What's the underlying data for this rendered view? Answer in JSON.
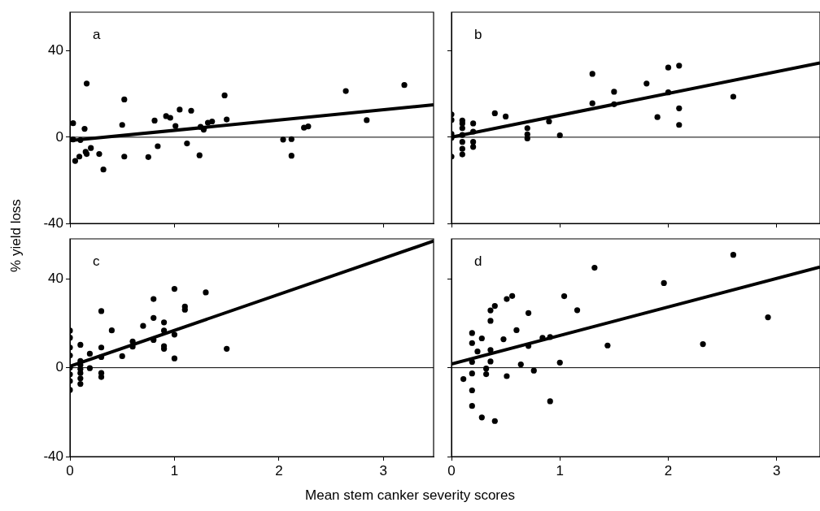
{
  "chart_data": [
    {
      "type": "scatter",
      "title": "a",
      "ylabel": "% yield loss",
      "xlim": [
        0,
        3.48
      ],
      "xticks": [
        0,
        1,
        2,
        3
      ],
      "ylim": [
        -40,
        58
      ],
      "yticks": [
        -40,
        0,
        40
      ],
      "tick_labels": "y",
      "grid": false,
      "ref_lines": [
        {
          "axis": "y",
          "value": 0,
          "color": "#000000"
        }
      ],
      "series": [
        {
          "type": "scatter",
          "marker": "circle",
          "color": "#000000",
          "x": [
            0.03,
            0.03,
            0.05,
            0.16,
            0.14,
            0.1,
            0.09,
            0.15,
            0.16,
            0.2,
            0.28,
            0.32,
            0.5,
            0.52,
            0.52,
            0.75,
            0.81,
            0.84,
            0.92,
            0.96,
            1.01,
            1.05,
            1.12,
            1.16,
            1.24,
            1.25,
            1.28,
            1.32,
            1.36,
            1.48,
            1.5,
            2.04,
            2.12,
            2.12,
            2.24,
            2.28,
            2.64,
            2.84,
            3.2
          ],
          "values": [
            6.5,
            -1,
            -11,
            24.9,
            3.9,
            -1.3,
            -9,
            -6.8,
            -7.8,
            -5,
            -7.8,
            -15,
            5.7,
            17.5,
            -9,
            -9.2,
            7.7,
            -4.2,
            9.8,
            9,
            5.2,
            12.8,
            -2.9,
            12.3,
            -8.4,
            4.8,
            3.5,
            6.7,
            7.3,
            19.4,
            8.2,
            -1.1,
            -0.9,
            -8.6,
            4.4,
            5,
            21.4,
            7.9,
            24.2
          ]
        },
        {
          "type": "line",
          "color": "#000000",
          "x": [
            0,
            3.48
          ],
          "values": [
            -1.6,
            15
          ]
        }
      ]
    },
    {
      "type": "scatter",
      "title": "b",
      "xlim": [
        0,
        3.4
      ],
      "xticks": [
        0,
        1,
        2,
        3
      ],
      "ylim": [
        -40,
        58
      ],
      "yticks": [
        -40,
        0,
        40
      ],
      "tick_labels": false,
      "grid": false,
      "ref_lines": [
        {
          "axis": "y",
          "value": 0,
          "color": "#000000"
        }
      ],
      "series": [
        {
          "type": "scatter",
          "marker": "circle",
          "color": "#000000",
          "x": [
            0,
            0,
            0,
            0,
            0,
            0.1,
            0.1,
            0.1,
            0.1,
            0.1,
            0.1,
            0.1,
            0.2,
            0.2,
            0.2,
            0.2,
            0.4,
            0.5,
            0.7,
            0.7,
            0.7,
            0.9,
            1,
            1.3,
            1.3,
            1.5,
            1.5,
            1.8,
            1.9,
            2,
            2,
            2.1,
            2.1,
            2.1,
            2.6
          ],
          "values": [
            10.6,
            8,
            1.5,
            -0.3,
            -9,
            7.7,
            6.4,
            4.2,
            1,
            -2.2,
            -5.4,
            -8,
            6.4,
            2.6,
            -2.2,
            -4.5,
            11.1,
            9.6,
            4.2,
            1.3,
            -0.6,
            7.3,
            0.9,
            29.4,
            15.7,
            21.1,
            15.3,
            24.9,
            9.3,
            32.3,
            20.8,
            33.2,
            13.4,
            5.7,
            18.8
          ]
        },
        {
          "type": "line",
          "color": "#000000",
          "x": [
            0,
            3.4
          ],
          "values": [
            0,
            34.5
          ]
        }
      ]
    },
    {
      "type": "scatter",
      "title": "c",
      "xlabel": "Mean stem canker severity scores",
      "xlim": [
        0,
        3.48
      ],
      "xticks": [
        0,
        1,
        2,
        3
      ],
      "ylim": [
        -40,
        58
      ],
      "yticks": [
        -40,
        0,
        40
      ],
      "grid": false,
      "ref_lines": [
        {
          "axis": "y",
          "value": 0,
          "color": "#000000"
        }
      ],
      "series": [
        {
          "type": "scatter",
          "marker": "circle",
          "color": "#000000",
          "x": [
            0,
            0,
            0,
            0,
            0,
            0,
            0,
            0,
            0.1,
            0.1,
            0.1,
            0.1,
            0.1,
            0.1,
            0.1,
            0.19,
            0.19,
            0.3,
            0.3,
            0.3,
            0.3,
            0.3,
            0.4,
            0.5,
            0.6,
            0.6,
            0.7,
            0.8,
            0.8,
            0.8,
            0.9,
            0.9,
            0.9,
            0.9,
            1,
            1,
            1,
            1.1,
            1.1,
            1.3,
            1.5
          ],
          "values": [
            16.7,
            13.5,
            9.1,
            5.5,
            0,
            -3,
            -6,
            -10,
            10.3,
            3,
            1.2,
            -0.6,
            -2.4,
            -4.8,
            -7.3,
            6.3,
            -0.2,
            25.5,
            9.1,
            4.8,
            -2.4,
            -4.2,
            16.8,
            5.2,
            11.8,
            9.5,
            18.8,
            30.9,
            22.4,
            12.5,
            20.4,
            16.7,
            9.7,
            8.5,
            35.5,
            14.9,
            4.2,
            27.5,
            26.1,
            33.9,
            8.5
          ]
        },
        {
          "type": "line",
          "color": "#000000",
          "x": [
            0,
            3.48
          ],
          "values": [
            0.6,
            57
          ]
        }
      ]
    },
    {
      "type": "scatter",
      "title": "d",
      "xlim": [
        0,
        3.4
      ],
      "xticks": [
        0,
        1,
        2,
        3
      ],
      "ylim": [
        -40,
        58
      ],
      "yticks": [
        -40,
        0,
        40
      ],
      "tick_labels": "x",
      "grid": false,
      "ref_lines": [
        {
          "axis": "y",
          "value": 0,
          "color": "#000000"
        }
      ],
      "series": [
        {
          "type": "scatter",
          "marker": "circle",
          "color": "#000000",
          "x": [
            0.11,
            0.19,
            0.19,
            0.19,
            0.19,
            0.19,
            0.19,
            0.24,
            0.28,
            0.28,
            0.32,
            0.32,
            0.36,
            0.36,
            0.36,
            0.36,
            0.4,
            0.4,
            0.48,
            0.51,
            0.51,
            0.56,
            0.6,
            0.64,
            0.71,
            0.71,
            0.76,
            0.84,
            0.91,
            0.91,
            1,
            1.04,
            1.16,
            1.32,
            1.44,
            1.96,
            2.32,
            2.6,
            2.92
          ],
          "values": [
            -5.1,
            15.6,
            11.1,
            2.6,
            -2.6,
            -10.2,
            -17.2,
            7.3,
            13.2,
            -22.4,
            -0.4,
            -2.9,
            25.8,
            21.1,
            8,
            2.8,
            27.8,
            -24,
            12.8,
            30.9,
            -3.8,
            32.3,
            16.9,
            1.5,
            24.6,
            9.8,
            -1.3,
            13.4,
            13.8,
            -15.1,
            2.3,
            32.2,
            25.9,
            45,
            10,
            38.1,
            10.6,
            50.8,
            22.7
          ]
        },
        {
          "type": "line",
          "color": "#000000",
          "x": [
            0,
            3.4
          ],
          "values": [
            1.7,
            45.3
          ]
        }
      ]
    }
  ]
}
